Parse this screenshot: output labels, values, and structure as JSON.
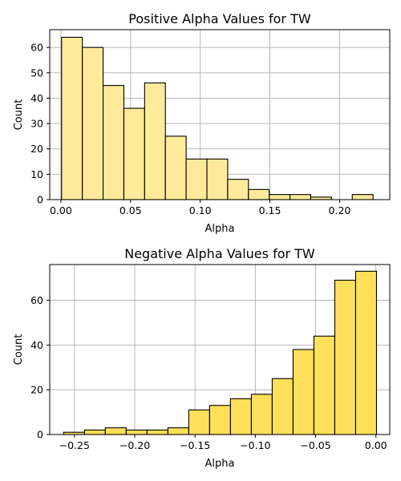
{
  "chart_data": [
    {
      "type": "bar",
      "title": "Positive Alpha Values for TW",
      "xlabel": "Alpha",
      "ylabel": "Count",
      "color": "#ffea99",
      "xlim": [
        -0.008,
        0.236
      ],
      "ylim": [
        0,
        67
      ],
      "xticks": [
        0.0,
        0.05,
        0.1,
        0.15,
        0.2
      ],
      "xtick_labels": [
        "0.00",
        "0.05",
        "0.10",
        "0.15",
        "0.20"
      ],
      "yticks": [
        0,
        10,
        20,
        30,
        40,
        50,
        60
      ],
      "ytick_labels": [
        "0",
        "10",
        "20",
        "30",
        "40",
        "50",
        "60"
      ],
      "grid": true,
      "bins": [
        {
          "x0": 0.0005,
          "x1": 0.0154,
          "count": 64
        },
        {
          "x0": 0.0154,
          "x1": 0.0303,
          "count": 60
        },
        {
          "x0": 0.0303,
          "x1": 0.0452,
          "count": 45
        },
        {
          "x0": 0.0452,
          "x1": 0.0601,
          "count": 36
        },
        {
          "x0": 0.0601,
          "x1": 0.075,
          "count": 46
        },
        {
          "x0": 0.075,
          "x1": 0.0899,
          "count": 25
        },
        {
          "x0": 0.0899,
          "x1": 0.1048,
          "count": 16
        },
        {
          "x0": 0.1048,
          "x1": 0.1197,
          "count": 16
        },
        {
          "x0": 0.1197,
          "x1": 0.1346,
          "count": 8
        },
        {
          "x0": 0.1346,
          "x1": 0.1495,
          "count": 4
        },
        {
          "x0": 0.1495,
          "x1": 0.1644,
          "count": 2
        },
        {
          "x0": 0.1644,
          "x1": 0.1793,
          "count": 2
        },
        {
          "x0": 0.1793,
          "x1": 0.1942,
          "count": 1
        },
        {
          "x0": 0.1942,
          "x1": 0.2091,
          "count": 0
        },
        {
          "x0": 0.2091,
          "x1": 0.224,
          "count": 2
        }
      ]
    },
    {
      "type": "bar",
      "title": "Negative Alpha Values for TW",
      "xlabel": "Alpha",
      "ylabel": "Count",
      "color": "#ffe05a",
      "xlim": [
        -0.2705,
        0.0115
      ],
      "ylim": [
        0,
        76
      ],
      "xticks": [
        -0.25,
        -0.2,
        -0.15,
        -0.1,
        -0.05,
        0.0
      ],
      "xtick_labels": [
        "−0.25",
        "−0.20",
        "−0.15",
        "−0.10",
        "−0.05",
        "0.00"
      ],
      "yticks": [
        0,
        20,
        40,
        60
      ],
      "ytick_labels": [
        "0",
        "20",
        "40",
        "60"
      ],
      "grid": true,
      "bins": [
        {
          "x0": -0.259,
          "x1": -0.2417,
          "count": 1
        },
        {
          "x0": -0.2417,
          "x1": -0.2244,
          "count": 2
        },
        {
          "x0": -0.2244,
          "x1": -0.2071,
          "count": 3
        },
        {
          "x0": -0.2071,
          "x1": -0.1898,
          "count": 2
        },
        {
          "x0": -0.1898,
          "x1": -0.1725,
          "count": 2
        },
        {
          "x0": -0.1725,
          "x1": -0.1552,
          "count": 3
        },
        {
          "x0": -0.1552,
          "x1": -0.1379,
          "count": 11
        },
        {
          "x0": -0.1379,
          "x1": -0.1206,
          "count": 13
        },
        {
          "x0": -0.1206,
          "x1": -0.1033,
          "count": 16
        },
        {
          "x0": -0.1033,
          "x1": -0.086,
          "count": 18
        },
        {
          "x0": -0.086,
          "x1": -0.0687,
          "count": 25
        },
        {
          "x0": -0.0687,
          "x1": -0.0514,
          "count": 38
        },
        {
          "x0": -0.0514,
          "x1": -0.0341,
          "count": 44
        },
        {
          "x0": -0.0341,
          "x1": -0.0168,
          "count": 69
        },
        {
          "x0": -0.0168,
          "x1": 0.0005,
          "count": 73
        }
      ]
    }
  ]
}
